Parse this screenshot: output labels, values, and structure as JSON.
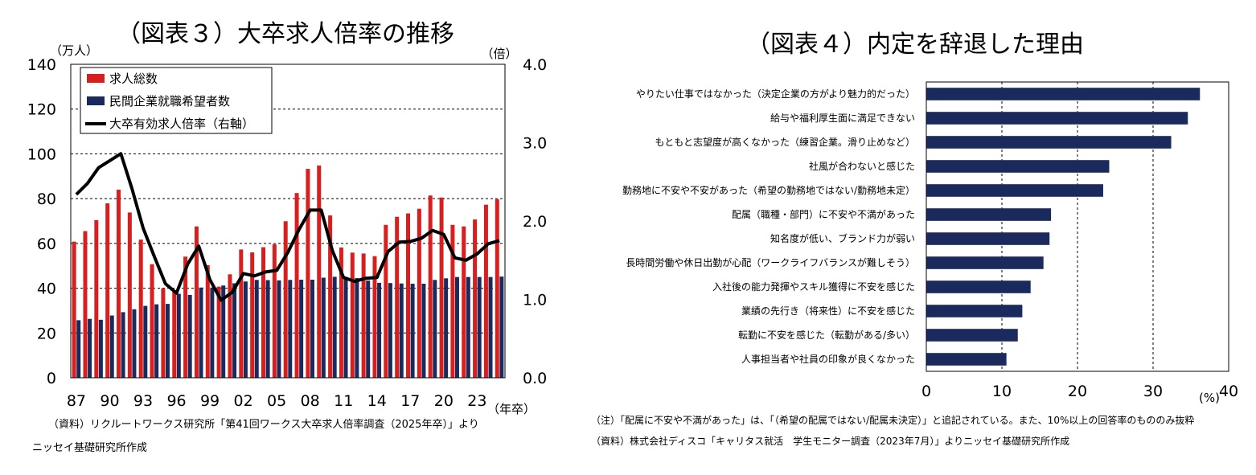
{
  "chart_data": [
    {
      "type": "bar",
      "title": "（図表３）大卒求人倍率の推移",
      "left_unit": "（万人）",
      "right_unit": "（倍）",
      "x_unit": "（年卒）",
      "x": [
        1987,
        1988,
        1989,
        1990,
        1991,
        1992,
        1993,
        1994,
        1995,
        1996,
        1997,
        1998,
        1999,
        2000,
        2001,
        2002,
        2003,
        2004,
        2005,
        2006,
        2007,
        2008,
        2009,
        2010,
        2011,
        2012,
        2013,
        2014,
        2015,
        2016,
        2017,
        2018,
        2019,
        2020,
        2021,
        2022,
        2023,
        2024,
        2025
      ],
      "x_tick_labels": [
        "87",
        "90",
        "93",
        "96",
        "99",
        "02",
        "05",
        "08",
        "11",
        "14",
        "17",
        "20",
        "23"
      ],
      "x_tick_years": [
        1987,
        1990,
        1993,
        1996,
        1999,
        2002,
        2005,
        2008,
        2011,
        2014,
        2017,
        2020,
        2023
      ],
      "left_ticks": [
        "0",
        "20",
        "40",
        "60",
        "80",
        "100",
        "120",
        "140"
      ],
      "right_ticks": [
        "0.0",
        "1.0",
        "2.0",
        "3.0",
        "4.0"
      ],
      "ylim": [
        0,
        140
      ],
      "ylim_right": [
        0,
        4
      ],
      "grid": "horizontal dashed",
      "legend_position": "top-left",
      "series": [
        {
          "name": "求人総数",
          "kind": "bar",
          "axis": "left",
          "color": "#d91e1e",
          "values": [
            60.8,
            65.5,
            70.4,
            77.9,
            84.0,
            73.8,
            61.7,
            50.7,
            40.0,
            39.1,
            54.1,
            67.6,
            50.3,
            40.7,
            46.2,
            57.3,
            56.0,
            58.3,
            59.6,
            69.9,
            82.5,
            93.3,
            94.8,
            72.5,
            58.2,
            55.9,
            55.5,
            54.3,
            68.3,
            71.9,
            73.4,
            75.5,
            81.4,
            80.5,
            68.3,
            67.6,
            70.7,
            77.3,
            79.7
          ]
        },
        {
          "name": "民間企業就職希望者数",
          "kind": "bar",
          "axis": "left",
          "color": "#1b2a5c",
          "values": [
            25.7,
            26.3,
            25.9,
            27.8,
            29.3,
            30.6,
            32.1,
            32.8,
            33.0,
            37.5,
            37.0,
            40.3,
            40.3,
            41.2,
            42.2,
            43.0,
            43.7,
            43.6,
            43.5,
            43.7,
            43.8,
            43.8,
            44.7,
            45.1,
            45.0,
            44.5,
            43.4,
            42.4,
            42.3,
            42.1,
            42.0,
            42.0,
            43.7,
            44.4,
            45.0,
            45.0,
            45.0,
            45.0,
            45.2
          ]
        },
        {
          "name": "大卒有効求人倍率（右軸）",
          "kind": "line",
          "axis": "right",
          "color": "#000000",
          "values": [
            2.34,
            2.48,
            2.68,
            2.77,
            2.86,
            2.41,
            1.91,
            1.55,
            1.2,
            1.08,
            1.45,
            1.68,
            1.25,
            0.99,
            1.09,
            1.33,
            1.3,
            1.35,
            1.37,
            1.6,
            1.89,
            2.14,
            2.14,
            1.62,
            1.28,
            1.23,
            1.27,
            1.28,
            1.61,
            1.73,
            1.74,
            1.78,
            1.88,
            1.83,
            1.53,
            1.5,
            1.58,
            1.71,
            1.75
          ]
        }
      ],
      "source": "（資料）リクルートワークス研究所「第41回ワークス大卒求人倍率調査（2025年卒）」より",
      "source2": "ニッセイ基礎研究所作成"
    },
    {
      "type": "bar",
      "orientation": "horizontal",
      "title": "（図表４）内定を辞退した理由",
      "x_unit": "(%)",
      "xlim": [
        0,
        40
      ],
      "x_ticks": [
        "0",
        "10",
        "20",
        "30",
        "40"
      ],
      "grid": "vertical dashed",
      "bar_color": "#1b2a5c",
      "categories": [
        "やりたい仕事ではなかった（決定企業の方がより魅力的だった）",
        "給与や福利厚生面に満足できない",
        "もともと志望度が高くなかった（練習企業。滑り止めなど）",
        "社風が合わないと感じた",
        "勤務地に不安や不安があった（希望の勤務地ではない/勤務地未定）",
        "配属（職種・部門）に不安や不満があった",
        "知名度が低い、ブランド力が弱い",
        "長時間労働や休日出勤が心配（ワークライフバランスが難しそう）",
        "入社後の能力発揮やスキル獲得に不安を感じた",
        "業績の先行き（将来性）に不安を感じた",
        "転勤に不安を感じた（転勤がある/多い）",
        "人事担当者や社員の印象が良くなかった"
      ],
      "values": [
        36.2,
        34.6,
        32.4,
        24.2,
        23.4,
        16.5,
        16.3,
        15.5,
        13.8,
        12.7,
        12.1,
        10.6
      ],
      "note": "（注）「配属に不安や不満があった」は、「（希望の配属ではない/配属未決定）」と追記されている。また、10%以上の回答率のもののみ抜粋",
      "source": "（資料）株式会社ディスコ「キャリタス就活　学生モニター調査（2023年7月）」よりニッセイ基礎研究所作成"
    }
  ]
}
